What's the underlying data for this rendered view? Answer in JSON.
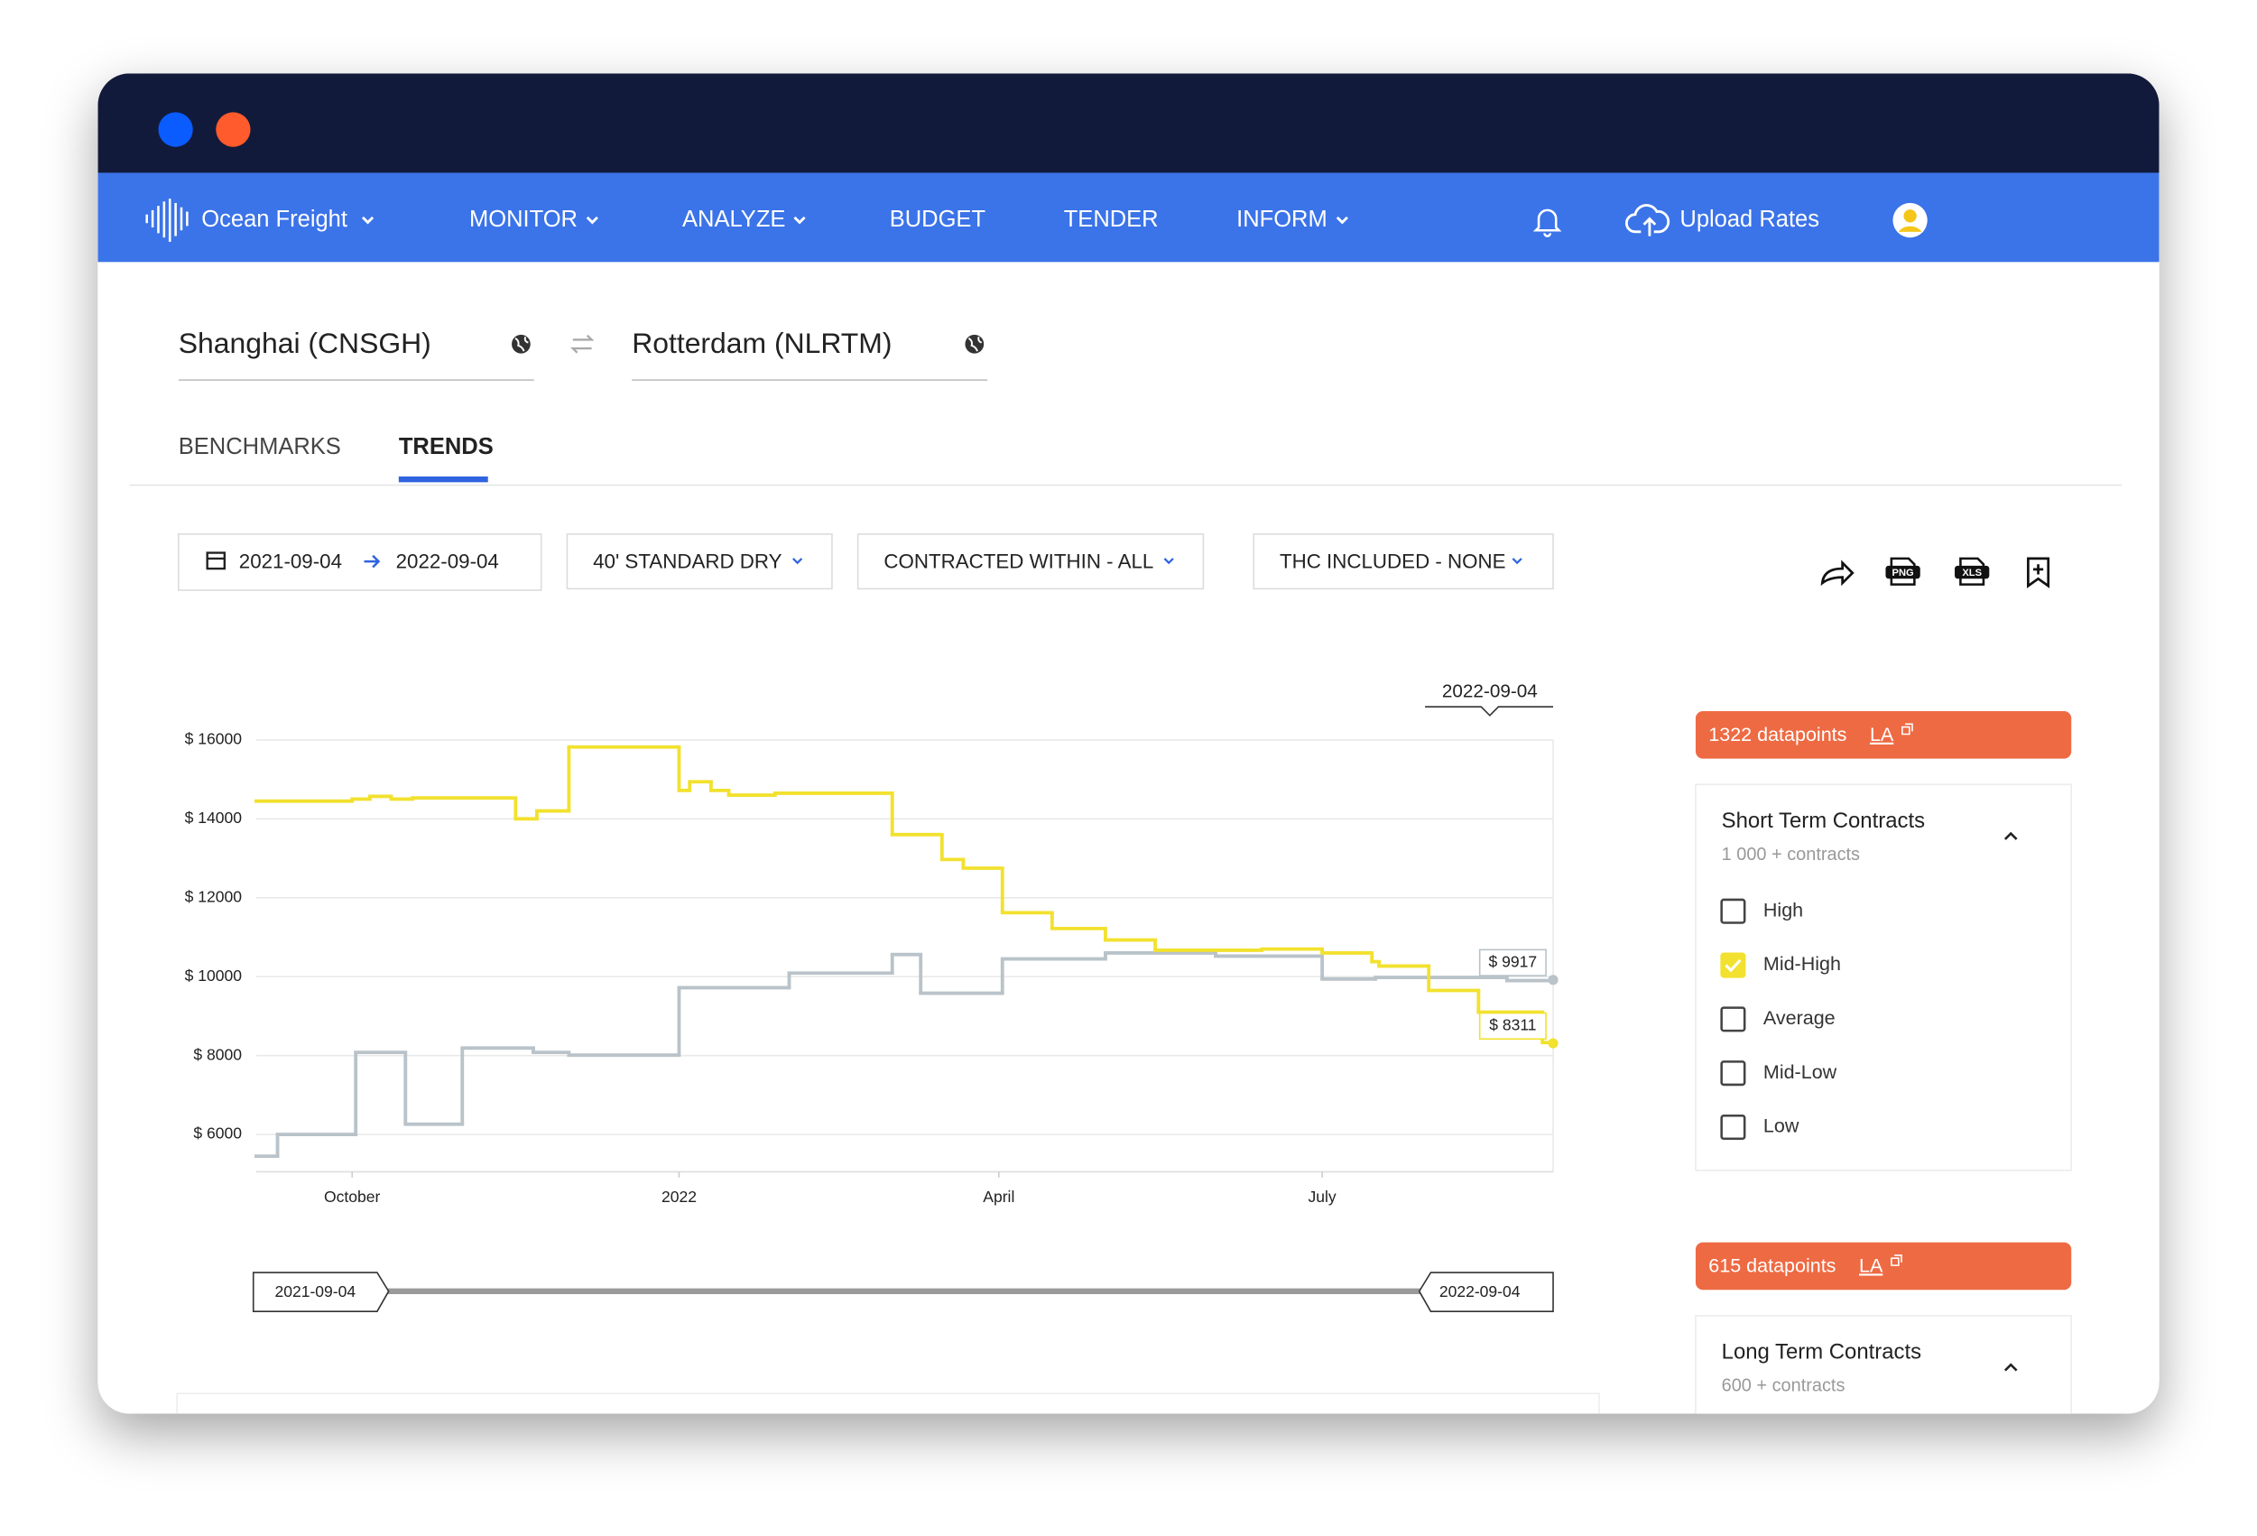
{
  "nav": {
    "product": "Ocean Freight",
    "items": [
      "MONITOR",
      "ANALYZE",
      "BUDGET",
      "TENDER",
      "INFORM"
    ],
    "upload": "Upload Rates"
  },
  "route": {
    "origin": "Shanghai (CNSGH)",
    "destination": "Rotterdam (NLRTM)"
  },
  "tabs": [
    "BENCHMARKS",
    "TRENDS"
  ],
  "filters": {
    "date_from": "2021-09-04",
    "date_to": "2022-09-04",
    "container": "40' STANDARD DRY",
    "contracted": "CONTRACTED WITHIN - ALL",
    "thc": "THC INCLUDED - NONE"
  },
  "export": [
    "PNG",
    "XLS"
  ],
  "panels": [
    {
      "datapoints": "1322 datapoints",
      "link": "LA",
      "title": "Short Term Contracts",
      "subtitle": "1 000 + contracts",
      "options": [
        "High",
        "Mid-High",
        "Average",
        "Mid-Low",
        "Low"
      ],
      "checked": [
        false,
        true,
        false,
        false,
        false
      ]
    },
    {
      "datapoints": "615 datapoints",
      "link": "LA",
      "title": "Long Term Contracts",
      "subtitle": "600 + contracts"
    }
  ],
  "chart_data": {
    "type": "step",
    "xlim": [
      "2021-09-04",
      "2022-09-04"
    ],
    "xticks": [
      {
        "value": "2021-10-01",
        "label": "October"
      },
      {
        "value": "2022-01-01",
        "label": "2022"
      },
      {
        "value": "2022-04-01",
        "label": "April"
      },
      {
        "value": "2022-07-01",
        "label": "July"
      }
    ],
    "ylim": [
      5200,
      16000
    ],
    "yticks": [
      {
        "value": 6000,
        "label": "$ 6000"
      },
      {
        "value": 8000,
        "label": "$ 8000"
      },
      {
        "value": 10000,
        "label": "$ 10000"
      },
      {
        "value": 12000,
        "label": "$ 12000"
      },
      {
        "value": 14000,
        "label": "$ 14000"
      },
      {
        "value": 16000,
        "label": "$ 16000"
      }
    ],
    "grid": true,
    "tooltip": "2022-09-04",
    "range_slider": [
      "2021-09-04",
      "2022-09-04"
    ],
    "series": [
      {
        "color": "#b9c3c9",
        "x": [
          "2021-09-04",
          "2021-09-10",
          "2021-10-02",
          "2021-10-16",
          "2021-11-01",
          "2021-11-21",
          "2021-12-01",
          "2022-01-01",
          "2022-02-01",
          "2022-03-02",
          "2022-03-10",
          "2022-04-02",
          "2022-05-01",
          "2022-06-01",
          "2022-07-01",
          "2022-07-16",
          "2022-08-22",
          "2022-09-04"
        ],
        "values": [
          5450,
          6000,
          8080,
          6260,
          8190,
          8080,
          8010,
          9720,
          10090,
          10560,
          9580,
          10450,
          10600,
          10520,
          9940,
          9980,
          9900,
          9917
        ],
        "value_labels": [
          null,
          null,
          null,
          null,
          null,
          null,
          null,
          null,
          null,
          null,
          null,
          null,
          null,
          null,
          null,
          null,
          null,
          "$ 9917"
        ]
      },
      {
        "color": "#f2e12e",
        "x": [
          "2021-09-04",
          "2021-10-01",
          "2021-10-06",
          "2021-10-12",
          "2021-10-18",
          "2021-11-16",
          "2021-11-22",
          "2021-12-01",
          "2022-01-01",
          "2022-01-04",
          "2022-01-10",
          "2022-01-15",
          "2022-01-28",
          "2022-03-02",
          "2022-03-16",
          "2022-03-22",
          "2022-04-02",
          "2022-04-16",
          "2022-05-01",
          "2022-05-15",
          "2022-06-14",
          "2022-07-01",
          "2022-07-15",
          "2022-07-17",
          "2022-07-31",
          "2022-08-14",
          "2022-09-01",
          "2022-09-04"
        ],
        "values": [
          14450,
          14500,
          14570,
          14500,
          14530,
          14000,
          14200,
          15820,
          14720,
          14940,
          14720,
          14600,
          14650,
          13600,
          12970,
          12750,
          11620,
          11220,
          10930,
          10670,
          10700,
          10600,
          10380,
          10270,
          9650,
          9100,
          8330,
          8311
        ],
        "value_labels": [
          null,
          null,
          null,
          null,
          null,
          null,
          null,
          null,
          null,
          null,
          null,
          null,
          null,
          null,
          null,
          null,
          null,
          null,
          null,
          null,
          null,
          null,
          null,
          null,
          null,
          null,
          null,
          "$ 8311"
        ]
      }
    ]
  }
}
